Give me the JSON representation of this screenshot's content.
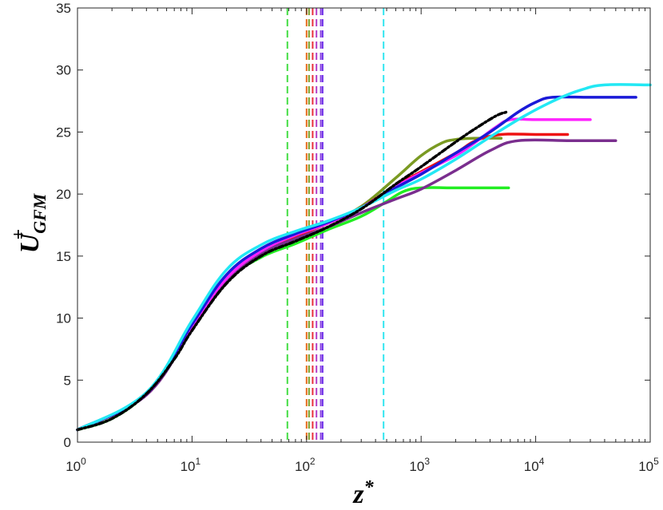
{
  "chart_data": {
    "type": "line",
    "title": "",
    "xlabel": {
      "base": "z",
      "sup": "*"
    },
    "ylabel": {
      "base": "U",
      "sup": "+",
      "sub": "GFM"
    },
    "x_scale": "log",
    "xlim": [
      1,
      100000
    ],
    "ylim": [
      0,
      35
    ],
    "grid": false,
    "legend": "none",
    "x_ticks": [
      {
        "base": "10",
        "exp": "0",
        "value": 1
      },
      {
        "base": "10",
        "exp": "1",
        "value": 10
      },
      {
        "base": "10",
        "exp": "2",
        "value": 100
      },
      {
        "base": "10",
        "exp": "3",
        "value": 1000
      },
      {
        "base": "10",
        "exp": "4",
        "value": 10000
      },
      {
        "base": "10",
        "exp": "5",
        "value": 100000
      }
    ],
    "y_ticks": [
      "0",
      "5",
      "10",
      "15",
      "20",
      "25",
      "30",
      "35"
    ],
    "vlines": [
      {
        "x": 68,
        "color": "#44dd44"
      },
      {
        "x": 100,
        "color": "#e86a1c"
      },
      {
        "x": 105,
        "color": "#7ba02a"
      },
      {
        "x": 113,
        "color": "#e8303c"
      },
      {
        "x": 122,
        "color": "#b43ec8"
      },
      {
        "x": 133,
        "color": "#8a44e0"
      },
      {
        "x": 138,
        "color": "#6e2ee8"
      },
      {
        "x": 470,
        "color": "#33e6f0"
      }
    ],
    "series": [
      {
        "color": "#22ee22",
        "width": 3.5,
        "dash": "",
        "x": [
          1,
          2,
          4,
          7,
          10,
          20,
          40,
          80,
          150,
          300,
          500,
          700,
          1000,
          2000,
          4000,
          5800
        ],
        "y": [
          1.0,
          1.9,
          3.9,
          6.8,
          9.2,
          13.0,
          14.9,
          16.0,
          17.1,
          18.2,
          19.4,
          20.2,
          20.5,
          20.5,
          20.5,
          20.5
        ]
      },
      {
        "color": "#7a9a22",
        "width": 3.5,
        "dash": "",
        "x": [
          1,
          4,
          10,
          20,
          40,
          80,
          150,
          300,
          600,
          1000,
          1500,
          2000,
          3000,
          5000
        ],
        "y": [
          1.0,
          3.9,
          9.3,
          13.1,
          15.3,
          16.6,
          17.6,
          19.0,
          21.3,
          23.1,
          24.1,
          24.4,
          24.5,
          24.5
        ]
      },
      {
        "color": "#ee1111",
        "width": 3.5,
        "dash": "",
        "x": [
          1,
          4,
          10,
          20,
          40,
          80,
          150,
          300,
          600,
          1000,
          2000,
          3000,
          5000,
          10000,
          19000
        ],
        "y": [
          1.0,
          3.9,
          9.4,
          13.2,
          15.4,
          16.6,
          17.6,
          18.9,
          20.7,
          21.8,
          23.3,
          24.3,
          24.8,
          24.8,
          24.8
        ]
      },
      {
        "color": "#7a2e8e",
        "width": 3.5,
        "dash": "",
        "x": [
          1,
          4,
          10,
          20,
          40,
          80,
          150,
          300,
          600,
          1000,
          2000,
          4000,
          7000,
          20000,
          50000
        ],
        "y": [
          1.0,
          3.8,
          9.1,
          12.9,
          15.2,
          16.4,
          17.3,
          18.5,
          19.6,
          20.4,
          21.9,
          23.5,
          24.3,
          24.3,
          24.3
        ]
      },
      {
        "color": "#ff22ff",
        "width": 3.5,
        "dash": "",
        "x": [
          1,
          4,
          10,
          20,
          40,
          80,
          150,
          300,
          600,
          1000,
          2000,
          3000,
          4500,
          6000,
          10000,
          30000
        ],
        "y": [
          1.0,
          3.9,
          9.4,
          13.2,
          15.4,
          16.7,
          17.6,
          18.9,
          20.6,
          21.7,
          23.1,
          24.2,
          25.4,
          26.0,
          26.0,
          26.0
        ]
      },
      {
        "color": "#1a1ad8",
        "width": 3.5,
        "dash": "",
        "x": [
          1,
          4,
          10,
          20,
          40,
          80,
          150,
          300,
          600,
          1000,
          2000,
          4000,
          7000,
          10000,
          14000,
          30000,
          75000
        ],
        "y": [
          1.0,
          3.9,
          9.5,
          13.5,
          15.6,
          16.8,
          17.7,
          18.9,
          20.5,
          21.6,
          23.3,
          25.0,
          26.6,
          27.4,
          27.8,
          27.8,
          27.8
        ]
      },
      {
        "color": "#22e8f4",
        "width": 3.5,
        "dash": "",
        "x": [
          1,
          4,
          10,
          20,
          40,
          80,
          150,
          300,
          600,
          1000,
          2000,
          4000,
          8000,
          15000,
          25000,
          40000,
          100000
        ],
        "y": [
          1.0,
          4.0,
          9.8,
          13.9,
          15.9,
          17.0,
          17.8,
          18.9,
          20.3,
          21.2,
          22.8,
          24.6,
          26.3,
          27.6,
          28.4,
          28.8,
          28.8
        ]
      },
      {
        "color": "#000000",
        "width": 3.5,
        "dash": "6 3 2 3",
        "x": [
          1,
          2,
          4,
          7,
          10,
          20,
          40,
          80,
          150,
          300,
          600,
          1000,
          2000,
          3000,
          4500,
          5500
        ],
        "y": [
          1.0,
          1.9,
          3.9,
          6.7,
          9.0,
          12.8,
          15.0,
          16.2,
          17.3,
          18.8,
          20.8,
          22.2,
          24.2,
          25.3,
          26.3,
          26.6
        ]
      }
    ]
  }
}
